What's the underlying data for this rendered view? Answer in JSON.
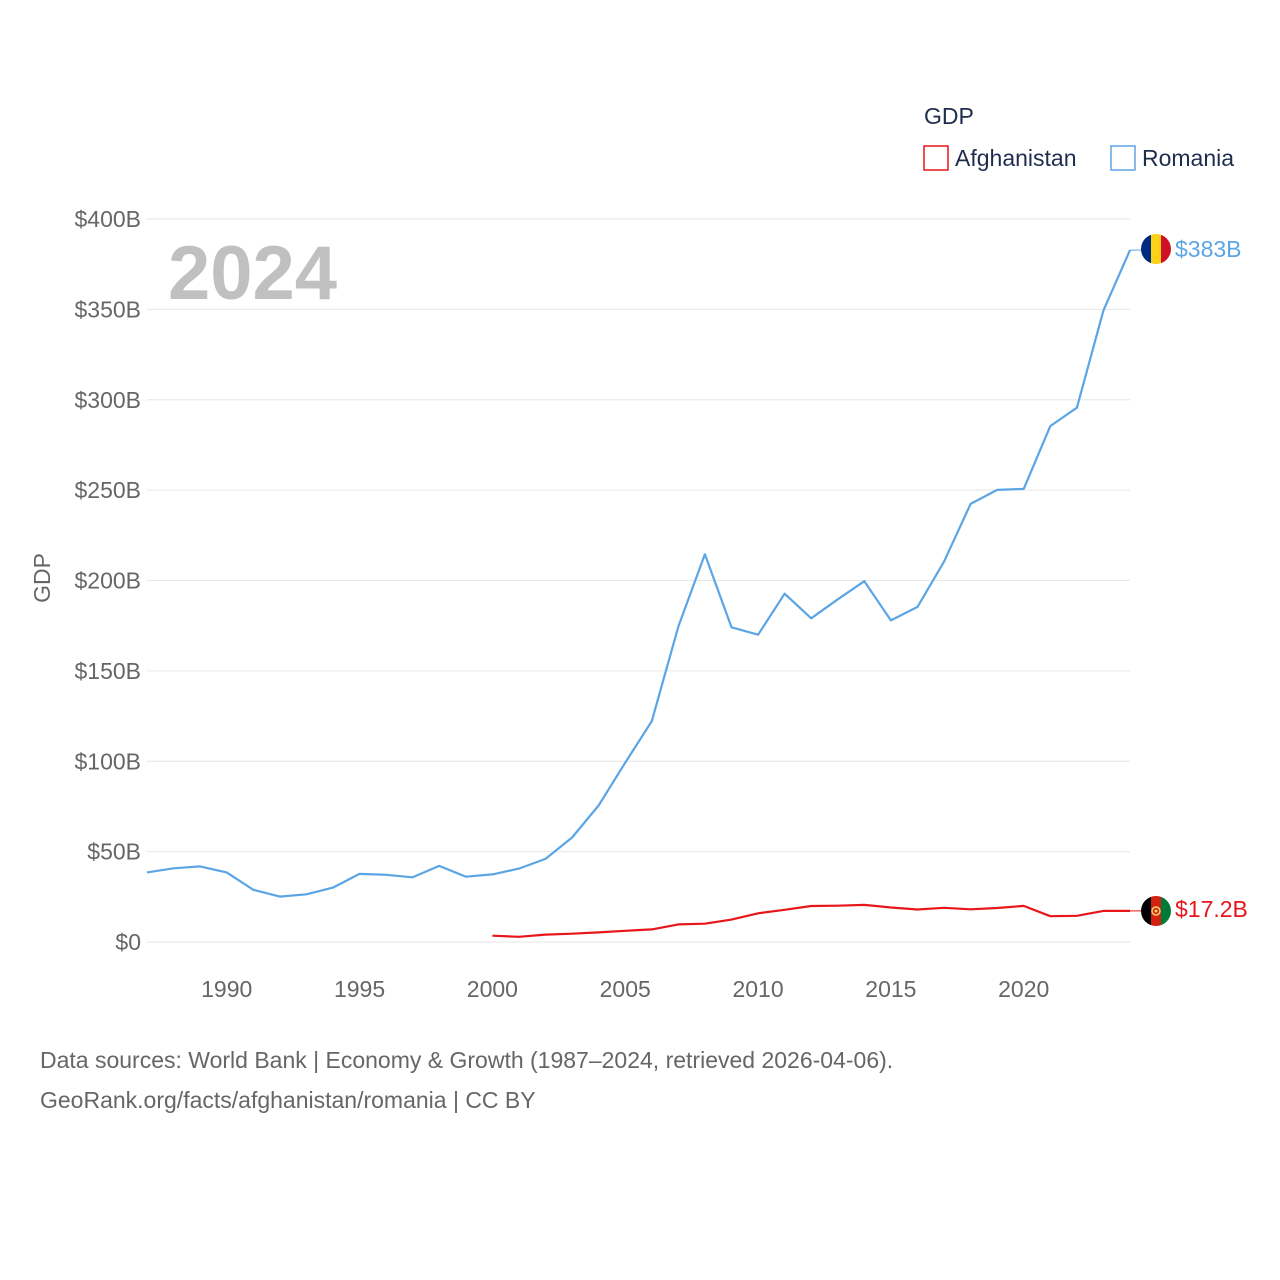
{
  "legend": {
    "title": "GDP",
    "items": [
      {
        "label": "Afghanistan",
        "color": "#e8161b"
      },
      {
        "label": "Romania",
        "color": "#5ba5e5"
      }
    ]
  },
  "year_label": "2024",
  "end_labels": {
    "romania": "$383B",
    "afghanistan": "$17.2B"
  },
  "footer": {
    "line1": "Data sources: World Bank | Economy & Growth (1987–2024, retrieved 2026-04-06).",
    "line2": "GeoRank.org/facts/afghanistan/romania | CC BY"
  },
  "chart_data": {
    "type": "line",
    "title": "",
    "xlabel": "",
    "ylabel": "GDP",
    "xlim": [
      1987,
      2024
    ],
    "ylim": [
      0,
      400
    ],
    "y_unit": "billion USD",
    "y_ticks": [
      {
        "value": 0,
        "label": "$0"
      },
      {
        "value": 50,
        "label": "$50B"
      },
      {
        "value": 100,
        "label": "$100B"
      },
      {
        "value": 150,
        "label": "$150B"
      },
      {
        "value": 200,
        "label": "$200B"
      },
      {
        "value": 250,
        "label": "$250B"
      },
      {
        "value": 300,
        "label": "$300B"
      },
      {
        "value": 350,
        "label": "$350B"
      },
      {
        "value": 400,
        "label": "$400B"
      }
    ],
    "x_ticks": [
      {
        "value": 1990,
        "label": "1990"
      },
      {
        "value": 1995,
        "label": "1995"
      },
      {
        "value": 2000,
        "label": "2000"
      },
      {
        "value": 2005,
        "label": "2005"
      },
      {
        "value": 2010,
        "label": "2010"
      },
      {
        "value": 2015,
        "label": "2015"
      },
      {
        "value": 2020,
        "label": "2020"
      }
    ],
    "grid": true,
    "legend_position": "top-right",
    "series": [
      {
        "name": "Romania",
        "color": "#5ba5e5",
        "x": [
          1987,
          1988,
          1989,
          1990,
          1991,
          1992,
          1993,
          1994,
          1995,
          1996,
          1997,
          1998,
          1999,
          2000,
          2001,
          2002,
          2003,
          2004,
          2005,
          2006,
          2007,
          2008,
          2009,
          2010,
          2011,
          2012,
          2013,
          2014,
          2015,
          2016,
          2017,
          2018,
          2019,
          2020,
          2021,
          2022,
          2023,
          2024
        ],
        "values": [
          38.5,
          40.8,
          41.8,
          38.5,
          28.9,
          25.1,
          26.4,
          30.1,
          37.7,
          37.2,
          35.8,
          42.1,
          36.1,
          37.4,
          40.6,
          46.0,
          57.8,
          75.5,
          99.2,
          122.2,
          174.6,
          214.5,
          174.1,
          170.0,
          192.7,
          179.1,
          189.6,
          199.6,
          177.9,
          185.4,
          210.4,
          242.4,
          250.1,
          250.7,
          285.4,
          295.6,
          349.3,
          382.8
        ]
      },
      {
        "name": "Afghanistan",
        "color": "#e8161b",
        "x": [
          2000,
          2001,
          2002,
          2003,
          2004,
          2005,
          2006,
          2007,
          2008,
          2009,
          2010,
          2011,
          2012,
          2013,
          2014,
          2015,
          2016,
          2017,
          2018,
          2019,
          2020,
          2021,
          2022,
          2023,
          2024
        ],
        "values": [
          3.5,
          2.9,
          4.1,
          4.6,
          5.3,
          6.2,
          6.97,
          9.75,
          10.1,
          12.4,
          15.9,
          17.8,
          19.9,
          20.1,
          20.5,
          19.1,
          18.0,
          18.9,
          18.1,
          18.8,
          20.0,
          14.3,
          14.5,
          17.2,
          17.2
        ]
      }
    ]
  }
}
